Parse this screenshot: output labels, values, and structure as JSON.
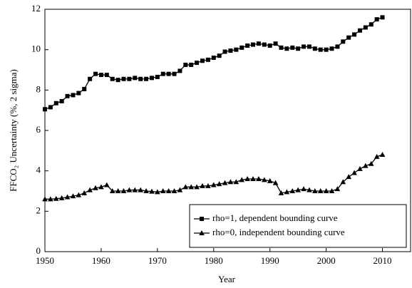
{
  "chart_data": {
    "type": "line",
    "xlabel": "Year",
    "ylabel": "FFCO₂ Uncertainty (%, 2 sigma)",
    "x": [
      1950,
      1951,
      1952,
      1953,
      1954,
      1955,
      1956,
      1957,
      1958,
      1959,
      1960,
      1961,
      1962,
      1963,
      1964,
      1965,
      1966,
      1967,
      1968,
      1969,
      1970,
      1971,
      1972,
      1973,
      1974,
      1975,
      1976,
      1977,
      1978,
      1979,
      1980,
      1981,
      1982,
      1983,
      1984,
      1985,
      1986,
      1987,
      1988,
      1989,
      1990,
      1991,
      1992,
      1993,
      1994,
      1995,
      1996,
      1997,
      1998,
      1999,
      2000,
      2001,
      2002,
      2003,
      2004,
      2005,
      2006,
      2007,
      2008,
      2009,
      2010
    ],
    "series": [
      {
        "name": "rho=1, dependent bounding curve",
        "color": "#000000",
        "marker": "square",
        "values": [
          7.05,
          7.15,
          7.35,
          7.45,
          7.7,
          7.75,
          7.85,
          8.05,
          8.55,
          8.8,
          8.75,
          8.75,
          8.55,
          8.5,
          8.55,
          8.55,
          8.6,
          8.55,
          8.55,
          8.6,
          8.65,
          8.8,
          8.8,
          8.8,
          8.95,
          9.25,
          9.25,
          9.35,
          9.45,
          9.5,
          9.6,
          9.7,
          9.9,
          9.95,
          10.0,
          10.1,
          10.2,
          10.25,
          10.3,
          10.25,
          10.2,
          10.3,
          10.1,
          10.05,
          10.1,
          10.05,
          10.15,
          10.15,
          10.05,
          10.0,
          10.0,
          10.05,
          10.15,
          10.4,
          10.6,
          10.75,
          10.95,
          11.1,
          11.25,
          11.5,
          11.6
        ]
      },
      {
        "name": "rho=0, independent bounding curve",
        "color": "#000000",
        "marker": "triangle",
        "values": [
          2.6,
          2.6,
          2.62,
          2.65,
          2.7,
          2.75,
          2.8,
          2.9,
          3.05,
          3.15,
          3.2,
          3.3,
          3.0,
          3.0,
          3.0,
          3.05,
          3.05,
          3.05,
          3.0,
          2.98,
          2.95,
          3.0,
          3.0,
          3.0,
          3.05,
          3.2,
          3.2,
          3.2,
          3.25,
          3.25,
          3.3,
          3.35,
          3.4,
          3.45,
          3.45,
          3.55,
          3.6,
          3.6,
          3.6,
          3.55,
          3.5,
          3.4,
          2.9,
          2.95,
          3.0,
          3.05,
          3.1,
          3.05,
          3.0,
          3.0,
          3.0,
          3.0,
          3.1,
          3.45,
          3.7,
          3.9,
          4.1,
          4.25,
          4.35,
          4.7,
          4.8
        ]
      }
    ],
    "xlim": [
      1950,
      2015
    ],
    "xticks": [
      1950,
      1960,
      1970,
      1980,
      1990,
      2000,
      2010
    ],
    "ylim": [
      0,
      12
    ],
    "yticks": [
      0,
      2,
      4,
      6,
      8,
      10,
      12
    ],
    "legend": "lower right"
  }
}
